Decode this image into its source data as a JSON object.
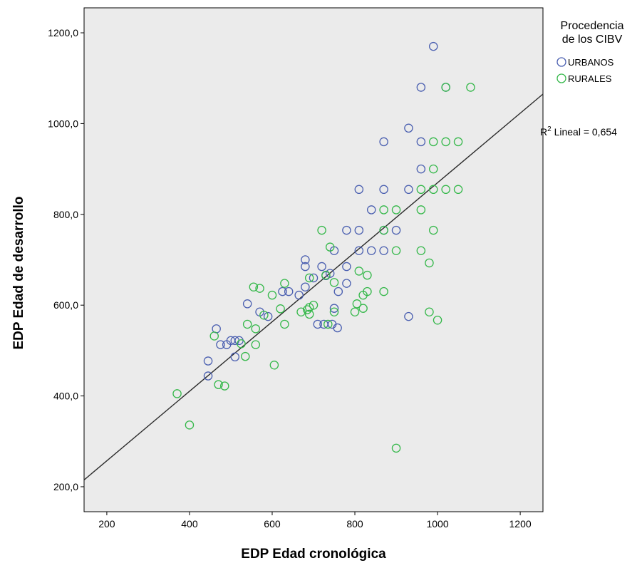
{
  "chart_data": {
    "type": "scatter",
    "xlabel": "EDP Edad cronológica",
    "ylabel": "EDP Edad de desarrollo",
    "xlim": [
      145,
      1255
    ],
    "ylim": [
      145,
      1255
    ],
    "x_ticks": [
      200,
      400,
      600,
      800,
      1000,
      1200
    ],
    "y_ticks": [
      200,
      400,
      600,
      800,
      1000,
      1200
    ],
    "x_tick_labels": [
      "200",
      "400",
      "600",
      "800",
      "1000",
      "1200"
    ],
    "y_tick_labels": [
      "200,0",
      "400,0",
      "600,0",
      "800,0",
      "1000,0",
      "1200,0"
    ],
    "grid": false,
    "plot_background": "#ebebeb",
    "legend": {
      "title_line1": "Procedencia",
      "title_line2": "de los CIBV",
      "placement": "right"
    },
    "fit_line": {
      "label_main": "R",
      "label_sup": "2",
      "label_rest": " Lineal = 0,654",
      "color": "#2b2b2b",
      "points": [
        [
          145,
          215
        ],
        [
          1255,
          1065
        ]
      ]
    },
    "series": [
      {
        "name": "URBANOS",
        "color": "#4a5fb0",
        "points": [
          [
            990,
            1170
          ],
          [
            960,
            1080
          ],
          [
            1020,
            1080
          ],
          [
            930,
            990
          ],
          [
            870,
            960
          ],
          [
            960,
            960
          ],
          [
            960,
            900
          ],
          [
            810,
            855
          ],
          [
            870,
            855
          ],
          [
            930,
            855
          ],
          [
            840,
            810
          ],
          [
            780,
            765
          ],
          [
            810,
            765
          ],
          [
            870,
            765
          ],
          [
            900,
            765
          ],
          [
            750,
            720
          ],
          [
            810,
            720
          ],
          [
            840,
            720
          ],
          [
            870,
            720
          ],
          [
            680,
            700
          ],
          [
            680,
            685
          ],
          [
            720,
            685
          ],
          [
            780,
            685
          ],
          [
            740,
            670
          ],
          [
            730,
            665
          ],
          [
            700,
            660
          ],
          [
            780,
            648
          ],
          [
            680,
            640
          ],
          [
            640,
            630
          ],
          [
            625,
            630
          ],
          [
            665,
            622
          ],
          [
            760,
            630
          ],
          [
            540,
            603
          ],
          [
            570,
            585
          ],
          [
            590,
            575
          ],
          [
            750,
            593
          ],
          [
            930,
            575
          ],
          [
            710,
            558
          ],
          [
            725,
            558
          ],
          [
            745,
            558
          ],
          [
            758,
            550
          ],
          [
            465,
            548
          ],
          [
            500,
            522
          ],
          [
            510,
            522
          ],
          [
            520,
            522
          ],
          [
            475,
            513
          ],
          [
            490,
            513
          ],
          [
            445,
            477
          ],
          [
            510,
            486
          ],
          [
            445,
            444
          ]
        ]
      },
      {
        "name": "RURALES",
        "color": "#35b84a",
        "points": [
          [
            1080,
            1080
          ],
          [
            1020,
            1080
          ],
          [
            990,
            960
          ],
          [
            1020,
            960
          ],
          [
            1050,
            960
          ],
          [
            990,
            900
          ],
          [
            960,
            855
          ],
          [
            990,
            855
          ],
          [
            1020,
            855
          ],
          [
            1050,
            855
          ],
          [
            870,
            810
          ],
          [
            900,
            810
          ],
          [
            960,
            810
          ],
          [
            870,
            765
          ],
          [
            990,
            765
          ],
          [
            720,
            765
          ],
          [
            740,
            728
          ],
          [
            900,
            720
          ],
          [
            960,
            720
          ],
          [
            980,
            693
          ],
          [
            810,
            675
          ],
          [
            830,
            666
          ],
          [
            730,
            666
          ],
          [
            750,
            650
          ],
          [
            690,
            660
          ],
          [
            630,
            648
          ],
          [
            555,
            640
          ],
          [
            570,
            637
          ],
          [
            600,
            622
          ],
          [
            820,
            622
          ],
          [
            830,
            630
          ],
          [
            870,
            630
          ],
          [
            670,
            585
          ],
          [
            690,
            580
          ],
          [
            690,
            595
          ],
          [
            700,
            600
          ],
          [
            805,
            603
          ],
          [
            820,
            593
          ],
          [
            750,
            585
          ],
          [
            685,
            590
          ],
          [
            620,
            592
          ],
          [
            580,
            578
          ],
          [
            800,
            585
          ],
          [
            980,
            585
          ],
          [
            1000,
            567
          ],
          [
            630,
            558
          ],
          [
            540,
            558
          ],
          [
            560,
            548
          ],
          [
            735,
            558
          ],
          [
            460,
            532
          ],
          [
            525,
            515
          ],
          [
            560,
            513
          ],
          [
            535,
            487
          ],
          [
            605,
            468
          ],
          [
            470,
            425
          ],
          [
            485,
            422
          ],
          [
            370,
            405
          ],
          [
            400,
            336
          ],
          [
            900,
            285
          ]
        ]
      }
    ]
  }
}
